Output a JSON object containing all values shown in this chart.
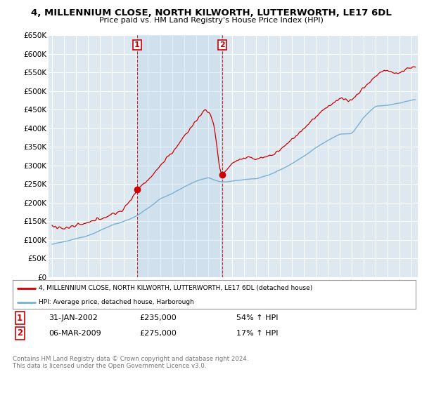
{
  "title": "4, MILLENNIUM CLOSE, NORTH KILWORTH, LUTTERWORTH, LE17 6DL",
  "subtitle": "Price paid vs. HM Land Registry's House Price Index (HPI)",
  "ylim": [
    0,
    650000
  ],
  "yticks": [
    0,
    50000,
    100000,
    150000,
    200000,
    250000,
    300000,
    350000,
    400000,
    450000,
    500000,
    550000,
    600000,
    650000
  ],
  "xlim_start": 1994.7,
  "xlim_end": 2025.5,
  "price_paid_color": "#cc0000",
  "hpi_color": "#7ab0d4",
  "shade_color": "#ddeeff",
  "sale1_x": 2002.08,
  "sale1_y": 235000,
  "sale2_x": 2009.17,
  "sale2_y": 275000,
  "legend_line1": "4, MILLENNIUM CLOSE, NORTH KILWORTH, LUTTERWORTH, LE17 6DL (detached house)",
  "legend_line2": "HPI: Average price, detached house, Harborough",
  "annotation1_label": "1",
  "annotation1_date": "31-JAN-2002",
  "annotation1_price": "£235,000",
  "annotation1_hpi": "54% ↑ HPI",
  "annotation2_label": "2",
  "annotation2_date": "06-MAR-2009",
  "annotation2_price": "£275,000",
  "annotation2_hpi": "17% ↑ HPI",
  "footer": "Contains HM Land Registry data © Crown copyright and database right 2024.\nThis data is licensed under the Open Government Licence v3.0.",
  "background_color": "#dde8f0",
  "grid_color": "#ffffff"
}
